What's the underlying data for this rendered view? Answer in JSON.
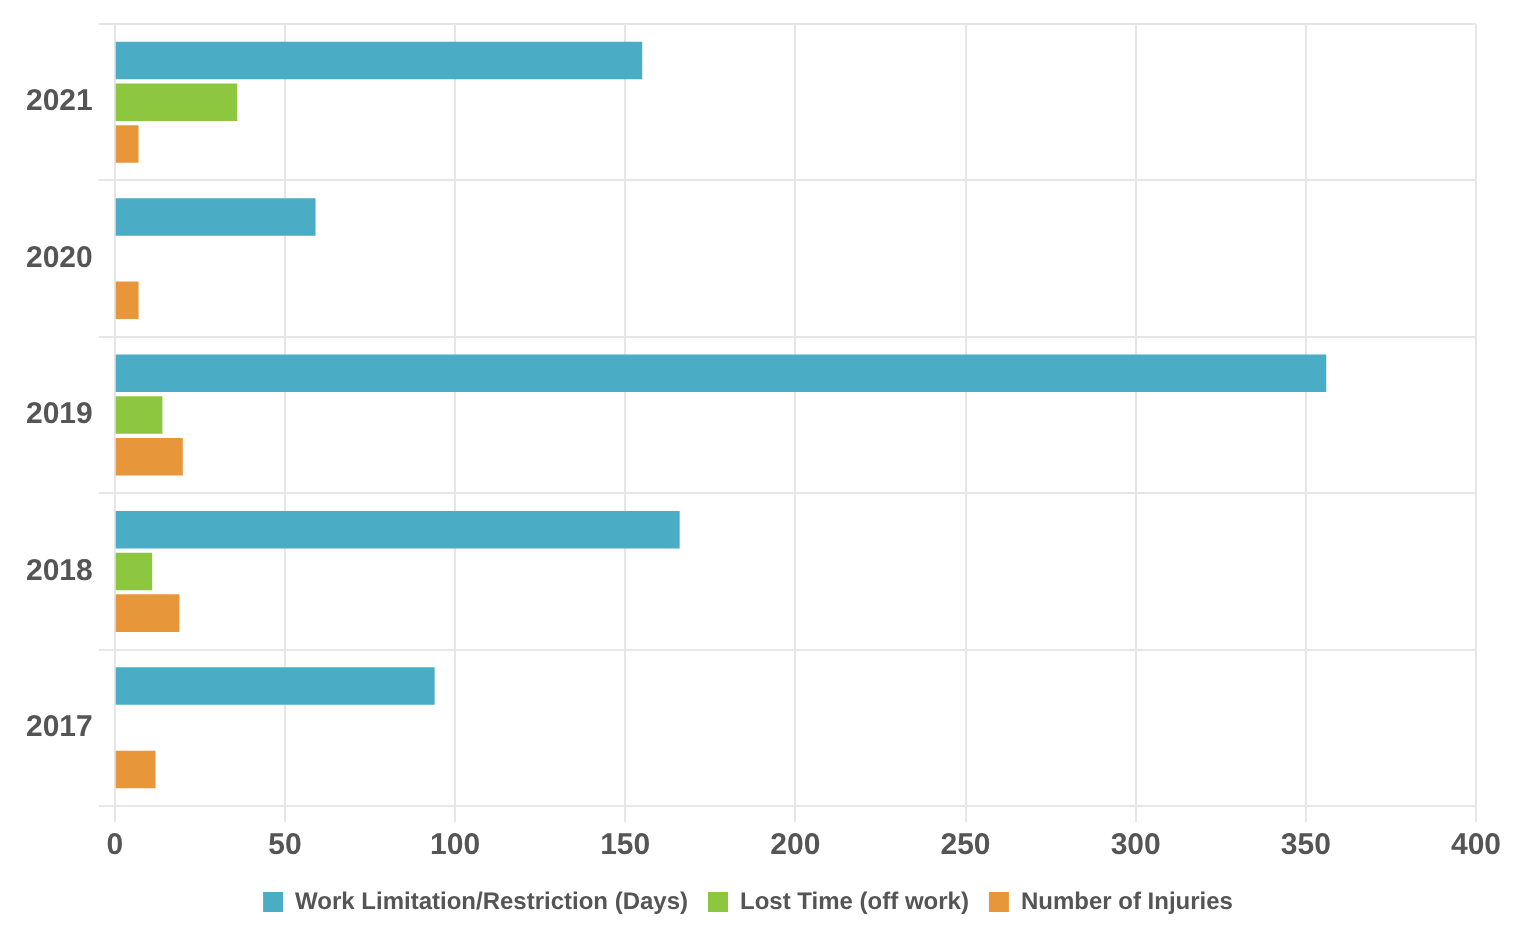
{
  "chart_data": {
    "type": "bar",
    "orientation": "horizontal",
    "categories": [
      "2021",
      "2020",
      "2019",
      "2018",
      "2017"
    ],
    "series": [
      {
        "name": "Work Limitation/Restriction (Days)",
        "color": "#4bacc6",
        "values": [
          155,
          59,
          356,
          166,
          94
        ]
      },
      {
        "name": "Lost Time (off work)",
        "color": "#8dc63f",
        "values": [
          36,
          null,
          14,
          11,
          null
        ]
      },
      {
        "name": "Number of Injuries",
        "color": "#e8963a",
        "values": [
          7,
          7,
          20,
          19,
          12
        ]
      }
    ],
    "xlim": [
      0,
      400
    ],
    "xticks": [
      0,
      50,
      100,
      150,
      200,
      250,
      300,
      350,
      400
    ],
    "grid": true,
    "legend": "bottom"
  }
}
